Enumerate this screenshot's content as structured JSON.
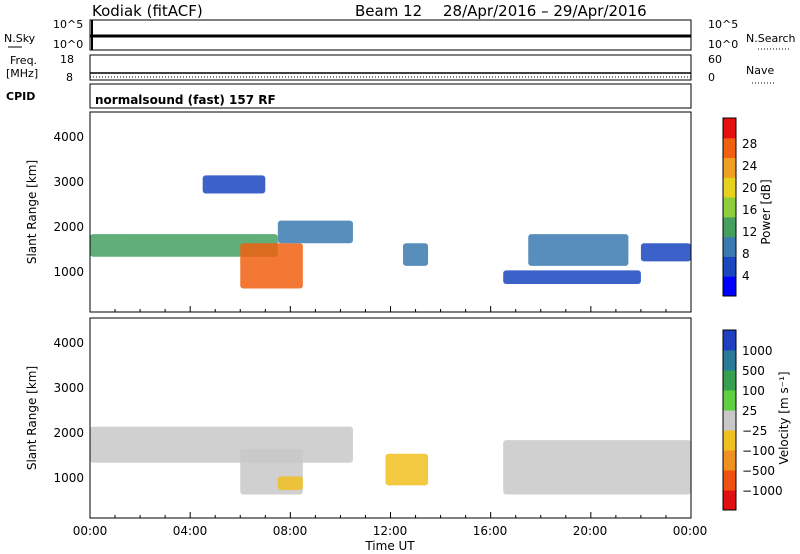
{
  "header": {
    "site": "Kodiak (fitACF)",
    "beam": "Beam 12",
    "dates": "28/Apr/2016 – 29/Apr/2016"
  },
  "noise_panel": {
    "left_label": "N.Sky",
    "right_label": "N.Search",
    "left_ticks": [
      "10^5",
      "10^0"
    ],
    "right_ticks": [
      "10^5",
      "10^0"
    ]
  },
  "freq_panel": {
    "left_label_1": "Freq.",
    "left_label_2": "[MHz]",
    "right_label": "Nave",
    "left_ticks": [
      "18",
      "8"
    ],
    "right_ticks": [
      "60",
      "0"
    ]
  },
  "cpid_panel": {
    "label": "CPID",
    "text": "normalsound (fast) 157 RF"
  },
  "power_panel": {
    "ylabel": "Slant Range [km]",
    "yticks": [
      "4000",
      "3000",
      "2000",
      "1000"
    ],
    "colorbar_label": "Power [dB]",
    "colorbar_ticks": [
      "28",
      "24",
      "20",
      "16",
      "12",
      "8",
      "4"
    ],
    "colors": [
      "#0000ff",
      "#1a46c0",
      "#3a7ab0",
      "#45a060",
      "#8ccf3a",
      "#e6d21e",
      "#f0a020",
      "#f06010",
      "#e61010"
    ]
  },
  "velocity_panel": {
    "ylabel": "Slant Range [km]",
    "yticks": [
      "4000",
      "3000",
      "2000",
      "1000"
    ],
    "colorbar_label": "Velocity [m s⁻¹]",
    "colorbar_ticks": [
      "1000",
      "500",
      "100",
      "25",
      "−25",
      "−100",
      "−500",
      "−1000"
    ],
    "colors": [
      "#2040c0",
      "#2a7a9a",
      "#36a050",
      "#60d040",
      "#c8c8c8",
      "#f0c020",
      "#f09020",
      "#f05010",
      "#e01010"
    ]
  },
  "x_axis": {
    "ticks": [
      "00:00",
      "04:00",
      "08:00",
      "12:00",
      "16:00",
      "20:00",
      "00:00"
    ],
    "label": "Time UT"
  },
  "chart_data": {
    "type": "heatmap",
    "title": "Kodiak (fitACF) Beam 12 28/Apr/2016 – 29/Apr/2016",
    "xlabel": "Time UT",
    "ylabel": "Slant Range [km]",
    "xlim_hours": [
      0,
      24
    ],
    "ylim_km": [
      180,
      4600
    ],
    "panels": [
      {
        "name": "Power [dB]",
        "colorbar_range": [
          0,
          32
        ],
        "features": [
          {
            "t_start": 0,
            "t_end": 7.5,
            "range_start_km": 1400,
            "range_end_km": 1900,
            "value": 12
          },
          {
            "t_start": 6.0,
            "t_end": 8.5,
            "range_start_km": 700,
            "range_end_km": 1700,
            "value": 26
          },
          {
            "t_start": 7.5,
            "t_end": 10.5,
            "range_start_km": 1700,
            "range_end_km": 2200,
            "value": 8
          },
          {
            "t_start": 4.5,
            "t_end": 7.0,
            "range_start_km": 2800,
            "range_end_km": 3200,
            "value": 6
          },
          {
            "t_start": 12.5,
            "t_end": 13.5,
            "range_start_km": 1200,
            "range_end_km": 1700,
            "value": 10
          },
          {
            "t_start": 17.5,
            "t_end": 21.5,
            "range_start_km": 1200,
            "range_end_km": 1900,
            "value": 8
          },
          {
            "t_start": 16.5,
            "t_end": 22.0,
            "range_start_km": 800,
            "range_end_km": 1100,
            "value": 6
          },
          {
            "t_start": 22.0,
            "t_end": 24.0,
            "range_start_km": 1300,
            "range_end_km": 1700,
            "value": 6
          }
        ]
      },
      {
        "name": "Velocity [m s-1]",
        "colorbar_range": [
          -1000,
          1000
        ],
        "features": [
          {
            "t_start": 0,
            "t_end": 10.5,
            "range_start_km": 1400,
            "range_end_km": 2200,
            "value": 0
          },
          {
            "t_start": 6.0,
            "t_end": 8.5,
            "range_start_km": 700,
            "range_end_km": 1700,
            "value": 80
          },
          {
            "t_start": 7.5,
            "t_end": 8.5,
            "range_start_km": 800,
            "range_end_km": 1100,
            "value": -300
          },
          {
            "t_start": 11.8,
            "t_end": 13.5,
            "range_start_km": 900,
            "range_end_km": 1600,
            "value": -200
          },
          {
            "t_start": 16.5,
            "t_end": 24.0,
            "range_start_km": 700,
            "range_end_km": 1900,
            "value": 0
          }
        ]
      }
    ]
  }
}
